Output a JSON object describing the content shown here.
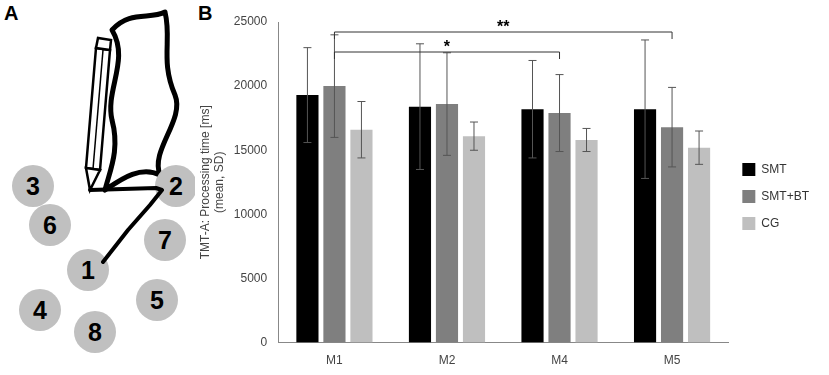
{
  "panels": [
    "A",
    "B"
  ],
  "diagram": {
    "circles": [
      "1",
      "2",
      "3",
      "4",
      "5",
      "6",
      "7",
      "8"
    ]
  },
  "chart_data": {
    "type": "bar",
    "categories": [
      "M1",
      "M2",
      "M4",
      "M5"
    ],
    "series": [
      {
        "name": "SMT",
        "color": "#000000",
        "values": [
          19300,
          18400,
          18200,
          18200
        ],
        "errors": [
          3700,
          4900,
          3800,
          5400
        ]
      },
      {
        "name": "SMT+BT",
        "color": "#7f7f7f",
        "values": [
          20000,
          18600,
          17900,
          16800
        ],
        "errors": [
          4000,
          4000,
          3000,
          3100
        ]
      },
      {
        "name": "CG",
        "color": "#bfbfbf",
        "values": [
          16600,
          16100,
          15800,
          15200
        ],
        "errors": [
          2200,
          1100,
          900,
          1300
        ]
      }
    ],
    "y_label": [
      "TMT-A: Processing time [ms]",
      "(mean, SD)"
    ],
    "ylim": [
      0,
      25000
    ],
    "yticks": [
      0,
      5000,
      10000,
      15000,
      20000,
      25000
    ],
    "grid": false,
    "legend": "right",
    "annotations": [
      {
        "from": "M1",
        "to": "M4",
        "series": "SMT+BT",
        "label": "*"
      },
      {
        "from": "M1",
        "to": "M5",
        "series": "SMT+BT",
        "label": "**"
      }
    ]
  }
}
